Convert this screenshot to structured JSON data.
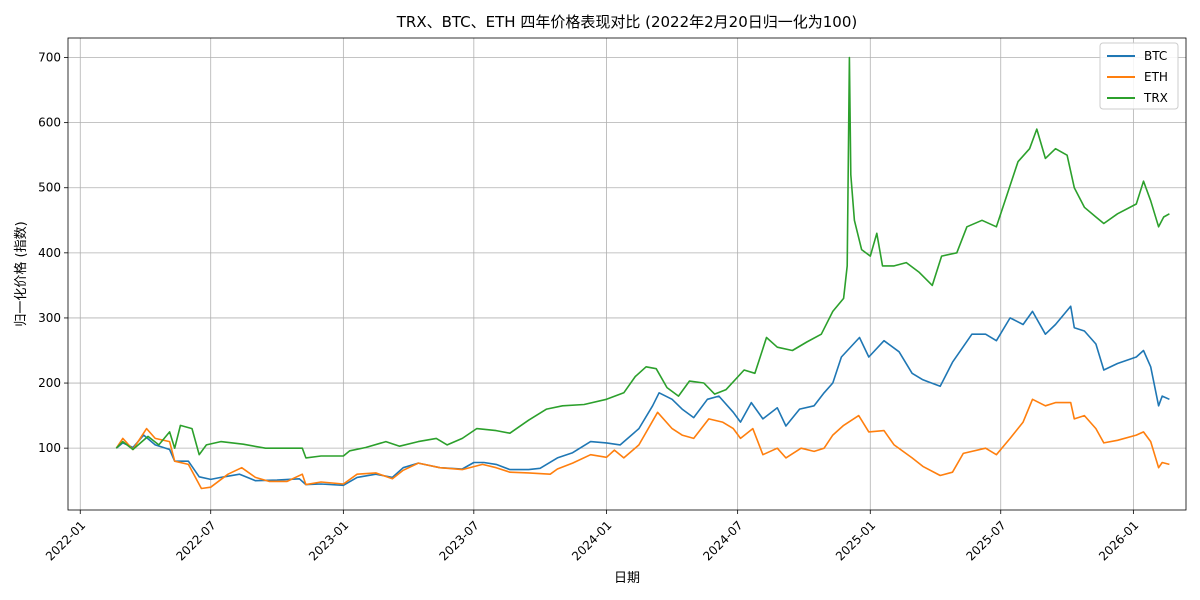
{
  "chart_data": {
    "type": "line",
    "title": "TRX、BTC、ETH 四年价格表现对比 (2022年2月20日归一化为100)",
    "xlabel": "日期",
    "ylabel": "归一化价格 (指数)",
    "xlim": [
      "2021-12-15",
      "2026-03-15"
    ],
    "ylim": [
      5,
      730
    ],
    "x_ticks": [
      "2022-01",
      "2022-07",
      "2023-01",
      "2023-07",
      "2024-01",
      "2024-07",
      "2025-01",
      "2025-07",
      "2026-01"
    ],
    "y_ticks": [
      100,
      200,
      300,
      400,
      500,
      600,
      700
    ],
    "grid": true,
    "legend_position": "top-right",
    "colors": {
      "BTC": "#1f77b4",
      "ETH": "#ff7f0e",
      "TRX": "#2ca02c"
    },
    "series": [
      {
        "name": "BTC",
        "color": "#1f77b4",
        "points": [
          [
            "2022-02-20",
            100
          ],
          [
            "2022-03-01",
            108
          ],
          [
            "2022-03-15",
            101
          ],
          [
            "2022-03-30",
            120
          ],
          [
            "2022-04-15",
            105
          ],
          [
            "2022-05-05",
            98
          ],
          [
            "2022-05-12",
            80
          ],
          [
            "2022-05-31",
            80
          ],
          [
            "2022-06-15",
            56
          ],
          [
            "2022-07-01",
            52
          ],
          [
            "2022-07-15",
            55
          ],
          [
            "2022-08-10",
            60
          ],
          [
            "2022-09-01",
            50
          ],
          [
            "2022-10-01",
            51
          ],
          [
            "2022-11-01",
            53
          ],
          [
            "2022-11-10",
            44
          ],
          [
            "2022-12-01",
            45
          ],
          [
            "2023-01-01",
            43
          ],
          [
            "2023-01-20",
            55
          ],
          [
            "2023-02-15",
            60
          ],
          [
            "2023-03-10",
            55
          ],
          [
            "2023-03-25",
            70
          ],
          [
            "2023-04-15",
            77
          ],
          [
            "2023-05-15",
            70
          ],
          [
            "2023-06-15",
            68
          ],
          [
            "2023-07-01",
            78
          ],
          [
            "2023-07-15",
            78
          ],
          [
            "2023-08-01",
            75
          ],
          [
            "2023-08-20",
            67
          ],
          [
            "2023-09-15",
            67
          ],
          [
            "2023-10-01",
            69
          ],
          [
            "2023-10-25",
            85
          ],
          [
            "2023-11-15",
            93
          ],
          [
            "2023-12-10",
            110
          ],
          [
            "2024-01-01",
            108
          ],
          [
            "2024-01-20",
            105
          ],
          [
            "2024-02-15",
            130
          ],
          [
            "2024-03-05",
            165
          ],
          [
            "2024-03-14",
            185
          ],
          [
            "2024-04-01",
            175
          ],
          [
            "2024-04-15",
            160
          ],
          [
            "2024-05-01",
            147
          ],
          [
            "2024-05-20",
            175
          ],
          [
            "2024-06-05",
            180
          ],
          [
            "2024-06-25",
            155
          ],
          [
            "2024-07-05",
            140
          ],
          [
            "2024-07-20",
            170
          ],
          [
            "2024-08-05",
            145
          ],
          [
            "2024-08-25",
            162
          ],
          [
            "2024-09-06",
            134
          ],
          [
            "2024-09-25",
            160
          ],
          [
            "2024-10-15",
            165
          ],
          [
            "2024-10-29",
            185
          ],
          [
            "2024-11-10",
            200
          ],
          [
            "2024-11-22",
            240
          ],
          [
            "2024-12-17",
            270
          ],
          [
            "2024-12-30",
            240
          ],
          [
            "2025-01-20",
            265
          ],
          [
            "2025-02-10",
            248
          ],
          [
            "2025-02-28",
            215
          ],
          [
            "2025-03-15",
            205
          ],
          [
            "2025-04-08",
            195
          ],
          [
            "2025-04-25",
            232
          ],
          [
            "2025-05-22",
            275
          ],
          [
            "2025-06-10",
            275
          ],
          [
            "2025-06-25",
            265
          ],
          [
            "2025-07-14",
            300
          ],
          [
            "2025-08-01",
            290
          ],
          [
            "2025-08-14",
            310
          ],
          [
            "2025-09-01",
            275
          ],
          [
            "2025-09-15",
            290
          ],
          [
            "2025-10-06",
            318
          ],
          [
            "2025-10-11",
            285
          ],
          [
            "2025-10-25",
            280
          ],
          [
            "2025-11-10",
            260
          ],
          [
            "2025-11-21",
            220
          ],
          [
            "2025-12-10",
            230
          ],
          [
            "2026-01-05",
            240
          ],
          [
            "2026-01-15",
            250
          ],
          [
            "2026-01-25",
            225
          ],
          [
            "2026-02-05",
            165
          ],
          [
            "2026-02-10",
            180
          ],
          [
            "2026-02-20",
            175
          ]
        ]
      },
      {
        "name": "ETH",
        "color": "#ff7f0e",
        "points": [
          [
            "2022-02-20",
            100
          ],
          [
            "2022-03-01",
            115
          ],
          [
            "2022-03-15",
            98
          ],
          [
            "2022-04-03",
            130
          ],
          [
            "2022-04-15",
            115
          ],
          [
            "2022-05-05",
            110
          ],
          [
            "2022-05-12",
            80
          ],
          [
            "2022-05-31",
            75
          ],
          [
            "2022-06-18",
            38
          ],
          [
            "2022-07-01",
            40
          ],
          [
            "2022-07-25",
            60
          ],
          [
            "2022-08-13",
            70
          ],
          [
            "2022-09-01",
            55
          ],
          [
            "2022-09-20",
            49
          ],
          [
            "2022-10-15",
            49
          ],
          [
            "2022-11-05",
            60
          ],
          [
            "2022-11-10",
            44
          ],
          [
            "2022-12-01",
            48
          ],
          [
            "2023-01-01",
            45
          ],
          [
            "2023-01-20",
            60
          ],
          [
            "2023-02-15",
            62
          ],
          [
            "2023-03-10",
            53
          ],
          [
            "2023-03-25",
            66
          ],
          [
            "2023-04-15",
            77
          ],
          [
            "2023-05-15",
            70
          ],
          [
            "2023-06-15",
            67
          ],
          [
            "2023-07-13",
            75
          ],
          [
            "2023-08-01",
            70
          ],
          [
            "2023-08-20",
            63
          ],
          [
            "2023-09-15",
            62
          ],
          [
            "2023-10-15",
            60
          ],
          [
            "2023-10-25",
            68
          ],
          [
            "2023-11-15",
            77
          ],
          [
            "2023-12-10",
            90
          ],
          [
            "2024-01-01",
            86
          ],
          [
            "2024-01-12",
            97
          ],
          [
            "2024-01-25",
            85
          ],
          [
            "2024-02-15",
            105
          ],
          [
            "2024-03-12",
            155
          ],
          [
            "2024-04-01",
            130
          ],
          [
            "2024-04-15",
            120
          ],
          [
            "2024-05-01",
            115
          ],
          [
            "2024-05-22",
            145
          ],
          [
            "2024-06-10",
            140
          ],
          [
            "2024-06-25",
            130
          ],
          [
            "2024-07-05",
            115
          ],
          [
            "2024-07-22",
            130
          ],
          [
            "2024-08-05",
            90
          ],
          [
            "2024-08-25",
            100
          ],
          [
            "2024-09-06",
            85
          ],
          [
            "2024-09-27",
            100
          ],
          [
            "2024-10-15",
            95
          ],
          [
            "2024-10-29",
            100
          ],
          [
            "2024-11-10",
            120
          ],
          [
            "2024-11-25",
            135
          ],
          [
            "2024-12-16",
            150
          ],
          [
            "2024-12-30",
            125
          ],
          [
            "2025-01-20",
            127
          ],
          [
            "2025-02-03",
            105
          ],
          [
            "2025-02-28",
            85
          ],
          [
            "2025-03-15",
            72
          ],
          [
            "2025-04-08",
            58
          ],
          [
            "2025-04-25",
            63
          ],
          [
            "2025-05-10",
            92
          ],
          [
            "2025-06-10",
            100
          ],
          [
            "2025-06-25",
            90
          ],
          [
            "2025-07-14",
            115
          ],
          [
            "2025-08-01",
            140
          ],
          [
            "2025-08-14",
            175
          ],
          [
            "2025-09-01",
            165
          ],
          [
            "2025-09-15",
            170
          ],
          [
            "2025-10-06",
            170
          ],
          [
            "2025-10-11",
            145
          ],
          [
            "2025-10-25",
            150
          ],
          [
            "2025-11-10",
            130
          ],
          [
            "2025-11-21",
            108
          ],
          [
            "2025-12-10",
            112
          ],
          [
            "2026-01-05",
            120
          ],
          [
            "2026-01-15",
            125
          ],
          [
            "2026-01-25",
            110
          ],
          [
            "2026-02-05",
            70
          ],
          [
            "2026-02-10",
            78
          ],
          [
            "2026-02-20",
            75
          ]
        ]
      },
      {
        "name": "TRX",
        "color": "#2ca02c",
        "points": [
          [
            "2022-02-20",
            100
          ],
          [
            "2022-03-01",
            110
          ],
          [
            "2022-03-15",
            98
          ],
          [
            "2022-04-05",
            118
          ],
          [
            "2022-04-20",
            105
          ],
          [
            "2022-05-05",
            125
          ],
          [
            "2022-05-12",
            100
          ],
          [
            "2022-05-20",
            135
          ],
          [
            "2022-06-05",
            130
          ],
          [
            "2022-06-15",
            90
          ],
          [
            "2022-06-25",
            105
          ],
          [
            "2022-07-15",
            110
          ],
          [
            "2022-08-15",
            106
          ],
          [
            "2022-09-15",
            100
          ],
          [
            "2022-10-15",
            100
          ],
          [
            "2022-11-05",
            100
          ],
          [
            "2022-11-10",
            85
          ],
          [
            "2022-12-01",
            88
          ],
          [
            "2023-01-01",
            88
          ],
          [
            "2023-01-10",
            96
          ],
          [
            "2023-02-01",
            101
          ],
          [
            "2023-03-01",
            110
          ],
          [
            "2023-03-20",
            103
          ],
          [
            "2023-04-15",
            110
          ],
          [
            "2023-05-10",
            115
          ],
          [
            "2023-05-25",
            105
          ],
          [
            "2023-06-15",
            115
          ],
          [
            "2023-07-05",
            130
          ],
          [
            "2023-08-01",
            127
          ],
          [
            "2023-08-20",
            123
          ],
          [
            "2023-09-15",
            143
          ],
          [
            "2023-10-10",
            160
          ],
          [
            "2023-11-01",
            165
          ],
          [
            "2023-12-01",
            167
          ],
          [
            "2024-01-01",
            175
          ],
          [
            "2024-01-25",
            185
          ],
          [
            "2024-02-10",
            210
          ],
          [
            "2024-02-25",
            225
          ],
          [
            "2024-03-10",
            222
          ],
          [
            "2024-03-25",
            193
          ],
          [
            "2024-04-10",
            180
          ],
          [
            "2024-04-25",
            203
          ],
          [
            "2024-05-15",
            200
          ],
          [
            "2024-05-30",
            183
          ],
          [
            "2024-06-15",
            190
          ],
          [
            "2024-07-10",
            220
          ],
          [
            "2024-07-25",
            215
          ],
          [
            "2024-08-10",
            270
          ],
          [
            "2024-08-25",
            255
          ],
          [
            "2024-09-15",
            250
          ],
          [
            "2024-10-05",
            263
          ],
          [
            "2024-10-25",
            275
          ],
          [
            "2024-11-10",
            310
          ],
          [
            "2024-11-25",
            330
          ],
          [
            "2024-11-30",
            380
          ],
          [
            "2024-12-03",
            700
          ],
          [
            "2024-12-05",
            520
          ],
          [
            "2024-12-10",
            450
          ],
          [
            "2024-12-20",
            405
          ],
          [
            "2025-01-01",
            395
          ],
          [
            "2025-01-10",
            430
          ],
          [
            "2025-01-18",
            380
          ],
          [
            "2025-02-03",
            380
          ],
          [
            "2025-02-20",
            385
          ],
          [
            "2025-03-10",
            370
          ],
          [
            "2025-03-28",
            350
          ],
          [
            "2025-04-10",
            395
          ],
          [
            "2025-05-01",
            400
          ],
          [
            "2025-05-15",
            440
          ],
          [
            "2025-06-05",
            450
          ],
          [
            "2025-06-25",
            440
          ],
          [
            "2025-07-10",
            490
          ],
          [
            "2025-07-25",
            540
          ],
          [
            "2025-08-10",
            560
          ],
          [
            "2025-08-20",
            590
          ],
          [
            "2025-09-01",
            545
          ],
          [
            "2025-09-15",
            560
          ],
          [
            "2025-10-01",
            550
          ],
          [
            "2025-10-11",
            500
          ],
          [
            "2025-10-25",
            470
          ],
          [
            "2025-11-10",
            455
          ],
          [
            "2025-11-21",
            445
          ],
          [
            "2025-12-10",
            460
          ],
          [
            "2026-01-05",
            475
          ],
          [
            "2026-01-15",
            510
          ],
          [
            "2026-01-25",
            480
          ],
          [
            "2026-02-05",
            440
          ],
          [
            "2026-02-12",
            455
          ],
          [
            "2026-02-20",
            460
          ]
        ]
      }
    ]
  }
}
